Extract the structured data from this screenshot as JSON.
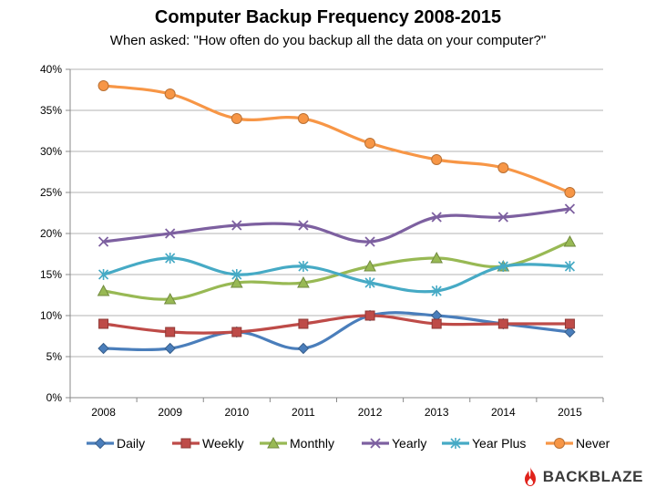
{
  "chart_data": {
    "type": "line",
    "title": "Computer Backup Frequency 2008-2015",
    "subtitle": "When asked: \"How often do you backup all the data on your computer?\"",
    "categories": [
      "2008",
      "2009",
      "2010",
      "2011",
      "2012",
      "2013",
      "2014",
      "2015"
    ],
    "y_ticks": [
      "0%",
      "5%",
      "10%",
      "15%",
      "20%",
      "25%",
      "30%",
      "35%",
      "40%"
    ],
    "ylim": [
      0,
      40
    ],
    "y_unit": "%",
    "grid": true,
    "legend_position": "bottom",
    "series": [
      {
        "name": "Daily",
        "color": "#4a7ebb",
        "marker": "diamond",
        "values": [
          6,
          6,
          8,
          6,
          10,
          10,
          9,
          8
        ]
      },
      {
        "name": "Weekly",
        "color": "#be4b48",
        "marker": "square",
        "values": [
          9,
          8,
          8,
          9,
          10,
          9,
          9,
          9
        ]
      },
      {
        "name": "Monthly",
        "color": "#98b954",
        "marker": "triangle",
        "values": [
          13,
          12,
          14,
          14,
          16,
          17,
          16,
          19
        ]
      },
      {
        "name": "Yearly",
        "color": "#7d60a0",
        "marker": "x",
        "values": [
          19,
          20,
          21,
          21,
          19,
          22,
          22,
          23
        ]
      },
      {
        "name": "Year Plus",
        "color": "#46aac5",
        "marker": "star",
        "values": [
          15,
          17,
          15,
          16,
          14,
          13,
          16,
          16
        ]
      },
      {
        "name": "Never",
        "color": "#f79646",
        "marker": "circle",
        "values": [
          38,
          37,
          34,
          34,
          31,
          29,
          28,
          25
        ]
      }
    ]
  },
  "logo": {
    "text": "BACKBLAZE",
    "color": "#e0221b"
  }
}
